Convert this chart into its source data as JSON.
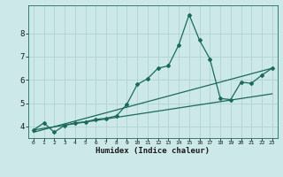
{
  "xlabel": "Humidex (Indice chaleur)",
  "bg_color": "#cce8e8",
  "grid_color": "#aacfcf",
  "line_color": "#1a6b5a",
  "x_ticks": [
    0,
    1,
    2,
    3,
    4,
    5,
    6,
    7,
    8,
    9,
    10,
    11,
    12,
    13,
    14,
    15,
    16,
    17,
    18,
    19,
    20,
    21,
    22,
    23
  ],
  "y_ticks": [
    4,
    5,
    6,
    7,
    8
  ],
  "ylim": [
    3.5,
    9.2
  ],
  "xlim": [
    -0.5,
    23.5
  ],
  "line1_x": [
    0,
    1,
    2,
    3,
    4,
    5,
    6,
    7,
    8,
    9,
    10,
    11,
    12,
    13,
    14,
    15,
    16,
    17,
    18,
    19,
    20,
    21,
    22,
    23
  ],
  "line1_y": [
    3.85,
    4.15,
    3.75,
    4.05,
    4.15,
    4.2,
    4.3,
    4.35,
    4.45,
    4.95,
    5.8,
    6.05,
    6.5,
    6.6,
    7.5,
    8.8,
    7.7,
    6.9,
    5.2,
    5.15,
    5.9,
    5.85,
    6.2,
    6.5
  ],
  "line2_x": [
    0,
    23
  ],
  "line2_y": [
    3.85,
    5.4
  ],
  "line3_x": [
    0,
    23
  ],
  "line3_y": [
    3.75,
    6.5
  ]
}
